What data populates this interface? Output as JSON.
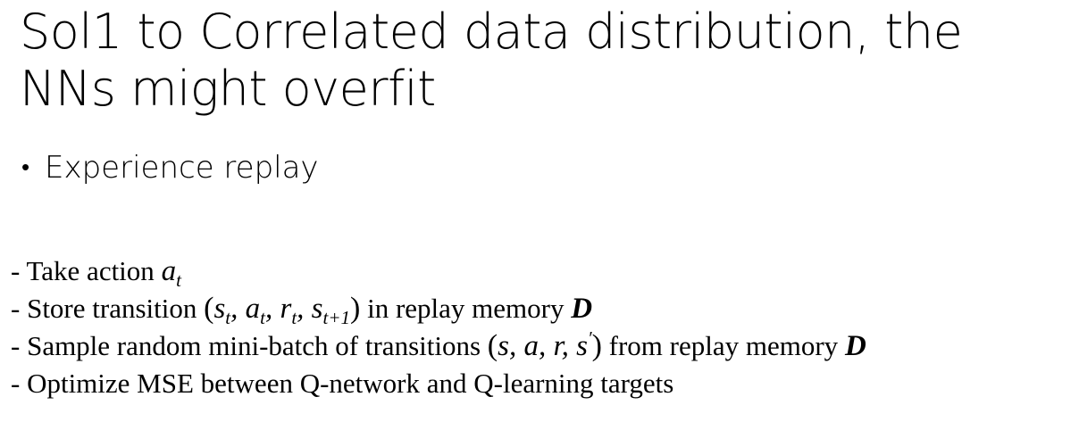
{
  "slide": {
    "title": "Sol1 to Correlated data distribution, the NNs might overfit",
    "bullet": "Experience replay",
    "bullet_marker": "•",
    "steps": {
      "s1": {
        "prefix": "- Take action ",
        "var": "a",
        "sub": "t"
      },
      "s2": {
        "prefix": "- Store transition ",
        "open": "(",
        "v1": "s",
        "v1_sub": "t",
        "c1": ", ",
        "v2": "a",
        "v2_sub": "t",
        "c2": ", ",
        "v3": "r",
        "v3_sub": "t",
        "c3": ", ",
        "v4": "s",
        "v4_sub": "t+1",
        "close": ")",
        "suffix": " in replay memory ",
        "memory": "D"
      },
      "s3": {
        "prefix": "- Sample random mini-batch of transitions ",
        "open": "(",
        "vars": "s, a, r, s",
        "prime": "′",
        "close": ")",
        "suffix": " from replay memory ",
        "memory": "D"
      },
      "s4": {
        "text": "- Optimize MSE between Q-network and Q-learning targets"
      }
    }
  }
}
